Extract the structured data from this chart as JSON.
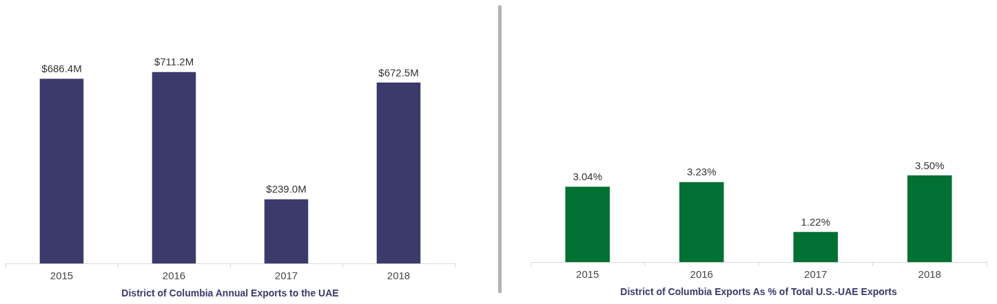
{
  "chart_data": [
    {
      "type": "bar",
      "title": "District of Columbia Annual Exports to the UAE",
      "categories": [
        "2015",
        "2016",
        "2017",
        "2018"
      ],
      "values": [
        686.4,
        711.2,
        239.0,
        672.5
      ],
      "value_labels": [
        "$686.4M",
        "$711.2M",
        "$239.0M",
        "$672.5M"
      ],
      "color": "#3b3a6b",
      "tick_labels": "x",
      "grid": false,
      "legend": false
    },
    {
      "type": "bar",
      "title": "District of Columbia Exports As % of Total U.S.-UAE Exports",
      "categories": [
        "2015",
        "2016",
        "2017",
        "2018"
      ],
      "values": [
        3.04,
        3.23,
        1.22,
        3.5
      ],
      "value_labels": [
        "3.04%",
        "3.23%",
        "1.22%",
        "3.50%"
      ],
      "color": "#007132",
      "tick_labels": "x",
      "grid": false,
      "legend": false
    }
  ]
}
